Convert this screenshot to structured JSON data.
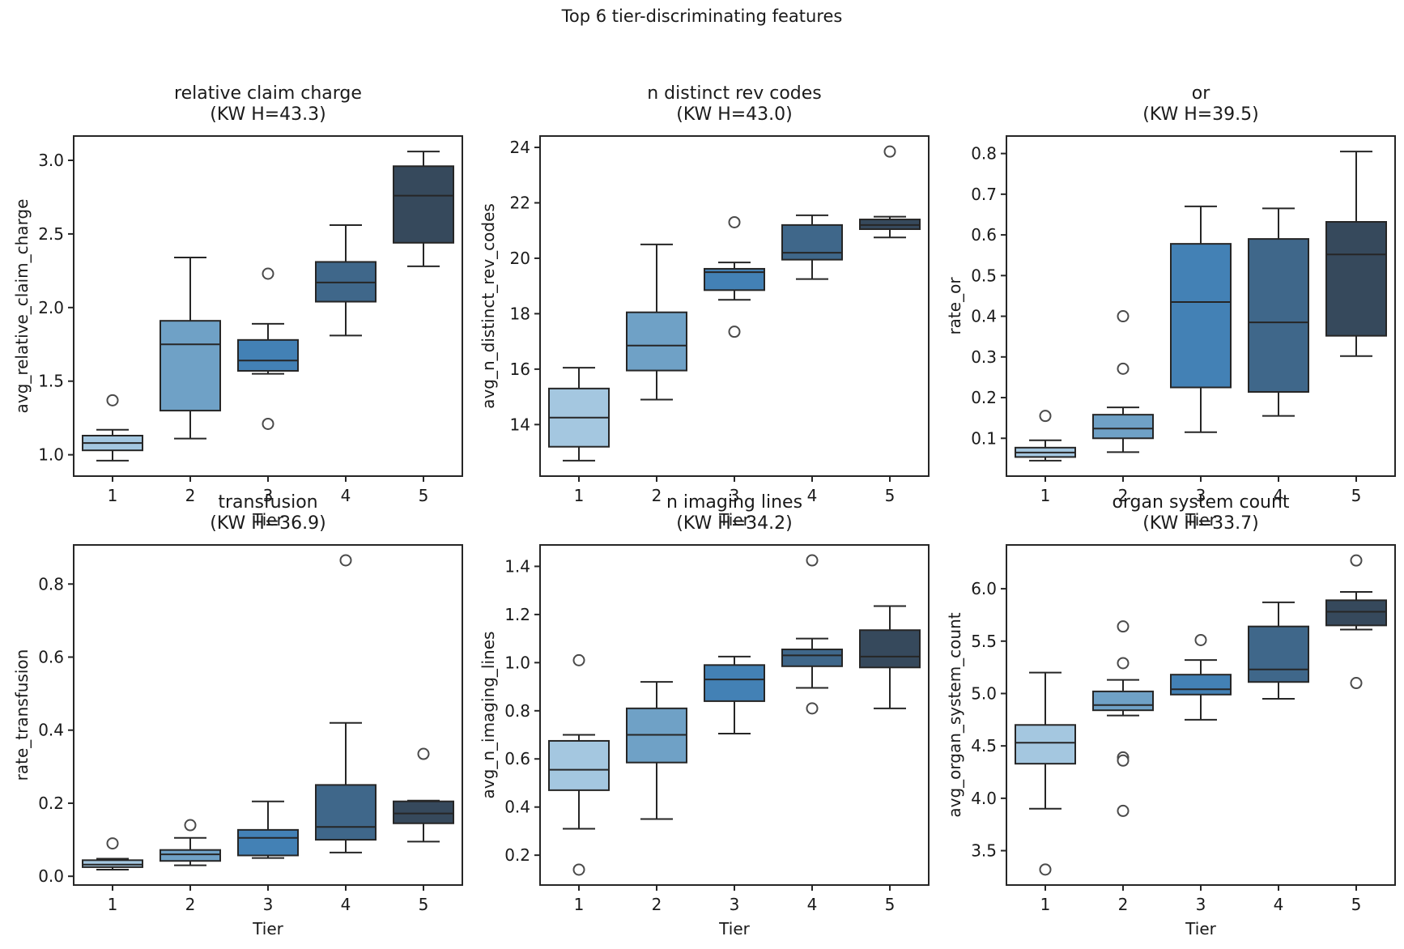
{
  "figure": {
    "suptitle": "Top 6 tier-discriminating features",
    "grid": false,
    "legend": "none",
    "box_colors": [
      "#a4c7e0",
      "#6fa1c6",
      "#4381b5",
      "#3f678a",
      "#36495c"
    ],
    "line_color": "#262626",
    "spine_color": "#262626",
    "flier_color": "#4a4a4a",
    "text_color": "#1a1a1a"
  },
  "chart_data": [
    {
      "type": "box",
      "title": "relative claim charge",
      "subtitle": "(KW H=43.3)",
      "xlabel": "Tier",
      "ylabel": "avg_relative_claim_charge",
      "categories": [
        "1",
        "2",
        "3",
        "4",
        "5"
      ],
      "ylim": [
        0.855,
        3.165
      ],
      "ytick_values": [
        1.0,
        1.5,
        2.0,
        2.5,
        3.0
      ],
      "ytick_labels": [
        "1.0",
        "1.5",
        "2.0",
        "2.5",
        "3.0"
      ],
      "boxes": [
        {
          "category": "1",
          "whislo": 0.96,
          "q1": 1.03,
          "med": 1.08,
          "q3": 1.13,
          "whishi": 1.17,
          "fliers": [
            1.37
          ]
        },
        {
          "category": "2",
          "whislo": 1.11,
          "q1": 1.3,
          "med": 1.75,
          "q3": 1.91,
          "whishi": 2.34,
          "fliers": []
        },
        {
          "category": "3",
          "whislo": 1.55,
          "q1": 1.57,
          "med": 1.64,
          "q3": 1.78,
          "whishi": 1.89,
          "fliers": [
            2.23,
            1.21
          ]
        },
        {
          "category": "4",
          "whislo": 1.81,
          "q1": 2.04,
          "med": 2.17,
          "q3": 2.31,
          "whishi": 2.56,
          "fliers": []
        },
        {
          "category": "5",
          "whislo": 2.28,
          "q1": 2.44,
          "med": 2.76,
          "q3": 2.96,
          "whishi": 3.06,
          "fliers": []
        }
      ]
    },
    {
      "type": "box",
      "title": "n distinct rev codes",
      "subtitle": "(KW H=43.0)",
      "xlabel": "Tier",
      "ylabel": "avg_n_distinct_rev_codes",
      "categories": [
        "1",
        "2",
        "3",
        "4",
        "5"
      ],
      "ylim": [
        12.14,
        24.41
      ],
      "ytick_values": [
        14,
        16,
        18,
        20,
        22,
        24
      ],
      "ytick_labels": [
        "14",
        "16",
        "18",
        "20",
        "22",
        "24"
      ],
      "boxes": [
        {
          "category": "1",
          "whislo": 12.7,
          "q1": 13.2,
          "med": 14.25,
          "q3": 15.3,
          "whishi": 16.05,
          "fliers": []
        },
        {
          "category": "2",
          "whislo": 14.9,
          "q1": 15.95,
          "med": 16.85,
          "q3": 18.05,
          "whishi": 20.5,
          "fliers": []
        },
        {
          "category": "3",
          "whislo": 18.5,
          "q1": 18.85,
          "med": 19.5,
          "q3": 19.62,
          "whishi": 19.85,
          "fliers": [
            21.3,
            17.35
          ]
        },
        {
          "category": "4",
          "whislo": 19.25,
          "q1": 19.95,
          "med": 20.2,
          "q3": 21.2,
          "whishi": 21.55,
          "fliers": []
        },
        {
          "category": "5",
          "whislo": 20.75,
          "q1": 21.05,
          "med": 21.2,
          "q3": 21.4,
          "whishi": 21.5,
          "fliers": [
            23.85
          ]
        }
      ]
    },
    {
      "type": "box",
      "title": "or",
      "subtitle": "(KW H=39.5)",
      "xlabel": "Tier",
      "ylabel": "rate_or",
      "categories": [
        "1",
        "2",
        "3",
        "4",
        "5"
      ],
      "ylim": [
        0.007,
        0.843
      ],
      "ytick_values": [
        0.1,
        0.2,
        0.3,
        0.4,
        0.5,
        0.6,
        0.7,
        0.8
      ],
      "ytick_labels": [
        "0.1",
        "0.2",
        "0.3",
        "0.4",
        "0.5",
        "0.6",
        "0.7",
        "0.8"
      ],
      "boxes": [
        {
          "category": "1",
          "whislo": 0.045,
          "q1": 0.054,
          "med": 0.065,
          "q3": 0.077,
          "whishi": 0.095,
          "fliers": [
            0.155
          ]
        },
        {
          "category": "2",
          "whislo": 0.066,
          "q1": 0.1,
          "med": 0.124,
          "q3": 0.158,
          "whishi": 0.176,
          "fliers": [
            0.4,
            0.271
          ]
        },
        {
          "category": "3",
          "whislo": 0.115,
          "q1": 0.225,
          "med": 0.435,
          "q3": 0.578,
          "whishi": 0.67,
          "fliers": []
        },
        {
          "category": "4",
          "whislo": 0.155,
          "q1": 0.214,
          "med": 0.385,
          "q3": 0.59,
          "whishi": 0.665,
          "fliers": []
        },
        {
          "category": "5",
          "whislo": 0.302,
          "q1": 0.352,
          "med": 0.552,
          "q3": 0.632,
          "whishi": 0.805,
          "fliers": []
        }
      ]
    },
    {
      "type": "box",
      "title": "transfusion",
      "subtitle": "(KW H=36.9)",
      "xlabel": "Tier",
      "ylabel": "rate_transfusion",
      "categories": [
        "1",
        "2",
        "3",
        "4",
        "5"
      ],
      "ylim": [
        -0.024,
        0.907
      ],
      "ytick_values": [
        0.0,
        0.2,
        0.4,
        0.6,
        0.8
      ],
      "ytick_labels": [
        "0.0",
        "0.2",
        "0.4",
        "0.6",
        "0.8"
      ],
      "boxes": [
        {
          "category": "1",
          "whislo": 0.018,
          "q1": 0.025,
          "med": 0.032,
          "q3": 0.044,
          "whishi": 0.048,
          "fliers": [
            0.09
          ]
        },
        {
          "category": "2",
          "whislo": 0.03,
          "q1": 0.042,
          "med": 0.06,
          "q3": 0.072,
          "whishi": 0.105,
          "fliers": [
            0.14
          ]
        },
        {
          "category": "3",
          "whislo": 0.05,
          "q1": 0.057,
          "med": 0.105,
          "q3": 0.127,
          "whishi": 0.205,
          "fliers": []
        },
        {
          "category": "4",
          "whislo": 0.065,
          "q1": 0.1,
          "med": 0.135,
          "q3": 0.25,
          "whishi": 0.42,
          "fliers": [
            0.865
          ]
        },
        {
          "category": "5",
          "whislo": 0.095,
          "q1": 0.145,
          "med": 0.172,
          "q3": 0.205,
          "whishi": 0.207,
          "fliers": [
            0.335
          ]
        }
      ]
    },
    {
      "type": "box",
      "title": "n imaging lines",
      "subtitle": "(KW H=34.2)",
      "xlabel": "Tier",
      "ylabel": "avg_n_imaging_lines",
      "categories": [
        "1",
        "2",
        "3",
        "4",
        "5"
      ],
      "ylim": [
        0.076,
        1.489
      ],
      "ytick_values": [
        0.2,
        0.4,
        0.6,
        0.8,
        1.0,
        1.2,
        1.4
      ],
      "ytick_labels": [
        "0.2",
        "0.4",
        "0.6",
        "0.8",
        "1.0",
        "1.2",
        "1.4"
      ],
      "boxes": [
        {
          "category": "1",
          "whislo": 0.31,
          "q1": 0.47,
          "med": 0.555,
          "q3": 0.675,
          "whishi": 0.7,
          "fliers": [
            1.01,
            0.14
          ]
        },
        {
          "category": "2",
          "whislo": 0.35,
          "q1": 0.585,
          "med": 0.7,
          "q3": 0.81,
          "whishi": 0.92,
          "fliers": []
        },
        {
          "category": "3",
          "whislo": 0.705,
          "q1": 0.84,
          "med": 0.93,
          "q3": 0.99,
          "whishi": 1.025,
          "fliers": []
        },
        {
          "category": "4",
          "whislo": 0.895,
          "q1": 0.985,
          "med": 1.03,
          "q3": 1.055,
          "whishi": 1.1,
          "fliers": [
            1.425,
            0.81
          ]
        },
        {
          "category": "5",
          "whislo": 0.81,
          "q1": 0.98,
          "med": 1.025,
          "q3": 1.135,
          "whishi": 1.235,
          "fliers": []
        }
      ]
    },
    {
      "type": "box",
      "title": "organ system count",
      "subtitle": "(KW H=33.7)",
      "xlabel": "Tier",
      "ylabel": "avg_organ_system_count",
      "categories": [
        "1",
        "2",
        "3",
        "4",
        "5"
      ],
      "ylim": [
        3.172,
        6.418
      ],
      "ytick_values": [
        3.5,
        4.0,
        4.5,
        5.0,
        5.5,
        6.0
      ],
      "ytick_labels": [
        "3.5",
        "4.0",
        "4.5",
        "5.0",
        "5.5",
        "6.0"
      ],
      "boxes": [
        {
          "category": "1",
          "whislo": 3.9,
          "q1": 4.33,
          "med": 4.53,
          "q3": 4.7,
          "whishi": 5.2,
          "fliers": [
            3.32
          ]
        },
        {
          "category": "2",
          "whislo": 4.79,
          "q1": 4.84,
          "med": 4.89,
          "q3": 5.02,
          "whishi": 5.13,
          "fliers": [
            5.64,
            5.29,
            4.39,
            4.36,
            3.88
          ]
        },
        {
          "category": "3",
          "whislo": 4.75,
          "q1": 4.99,
          "med": 5.04,
          "q3": 5.18,
          "whishi": 5.32,
          "fliers": [
            5.51
          ]
        },
        {
          "category": "4",
          "whislo": 4.95,
          "q1": 5.11,
          "med": 5.23,
          "q3": 5.64,
          "whishi": 5.87,
          "fliers": []
        },
        {
          "category": "5",
          "whislo": 5.61,
          "q1": 5.65,
          "med": 5.78,
          "q3": 5.89,
          "whishi": 5.97,
          "fliers": [
            6.27,
            5.1
          ]
        }
      ]
    }
  ]
}
